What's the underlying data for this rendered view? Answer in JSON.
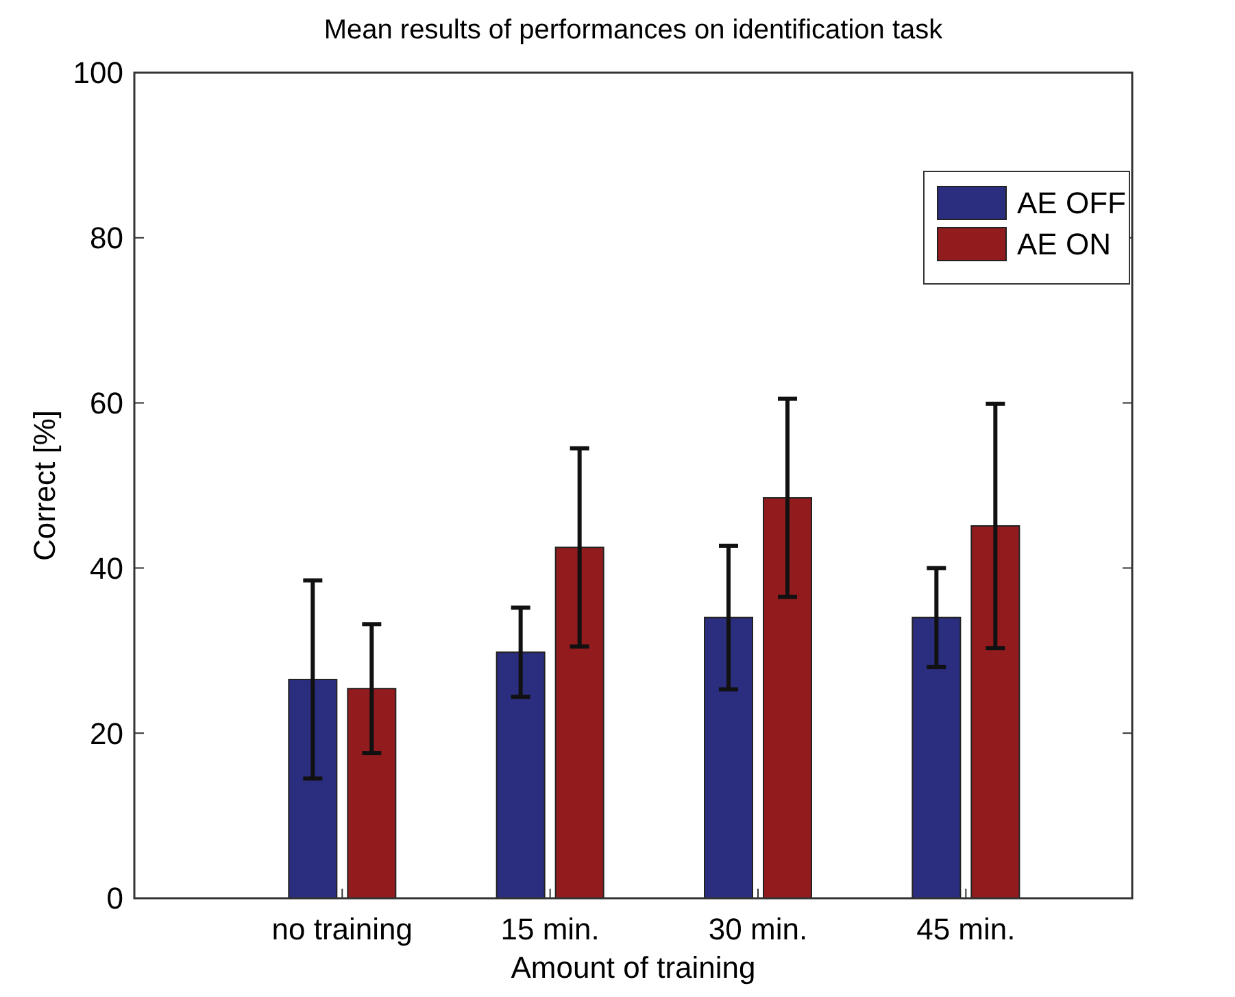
{
  "chart_data": {
    "type": "bar",
    "title": "Mean results of performances on identification task",
    "xlabel": "Amount of training",
    "ylabel": "Correct [%]",
    "categories": [
      "no training",
      "15 min.",
      "30 min.",
      "45 min."
    ],
    "series": [
      {
        "name": "AE OFF",
        "color": "#2b2d7e",
        "values": [
          26.5,
          29.8,
          34.0,
          34.0
        ],
        "errors": [
          12,
          5.4,
          8.7,
          6
        ]
      },
      {
        "name": "AE ON",
        "color": "#921b1e",
        "values": [
          25.4,
          42.5,
          48.5,
          45.1
        ],
        "errors": [
          7.8,
          12,
          12,
          14.8
        ]
      }
    ],
    "ylim": [
      0,
      100
    ],
    "yticks": [
      0,
      20,
      40,
      60,
      80,
      100
    ],
    "legend": "top right",
    "grid": false
  }
}
